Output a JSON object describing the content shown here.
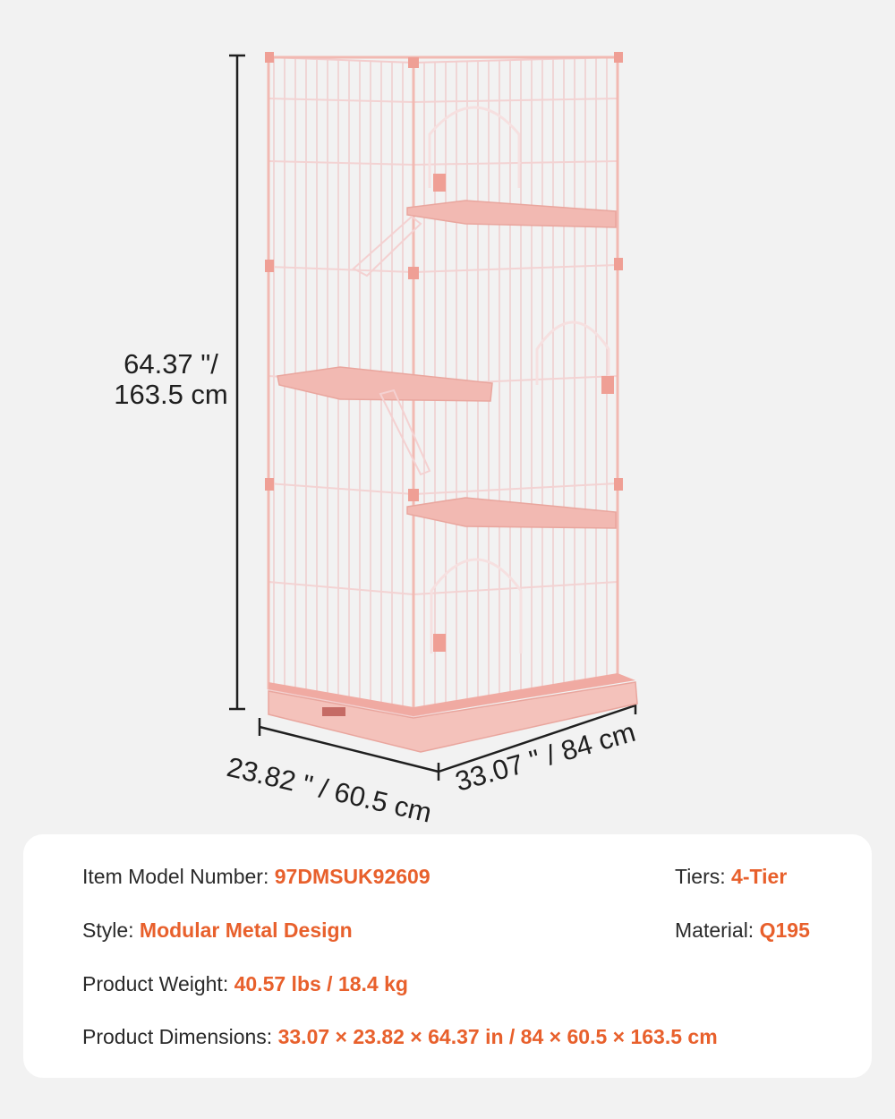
{
  "dimensions": {
    "height_line1": "64.37 \"/",
    "height_line2": "163.5 cm",
    "depth": "23.82 \" / 60.5 cm",
    "width": "33.07 \" / 84 cm"
  },
  "specs": {
    "model_label": "Item Model Number:",
    "model_value": "97DMSUK92609",
    "tiers_label": "Tiers:",
    "tiers_value": "4-Tier",
    "style_label": "Style:",
    "style_value": "Modular Metal Design",
    "material_label": "Material:",
    "material_value": "Q195",
    "weight_label": "Product Weight:",
    "weight_value": "40.57 lbs / 18.4 kg",
    "dims_label": "Product Dimensions:",
    "dims_value": "33.07 × 23.82 × 64.37 in / 84 × 60.5 × 163.5 cm"
  },
  "colors": {
    "background": "#f2f2f2",
    "accent": "#e8602c",
    "cage_pink": "#f2b9b2",
    "cage_wire": "#f7dcdc"
  }
}
